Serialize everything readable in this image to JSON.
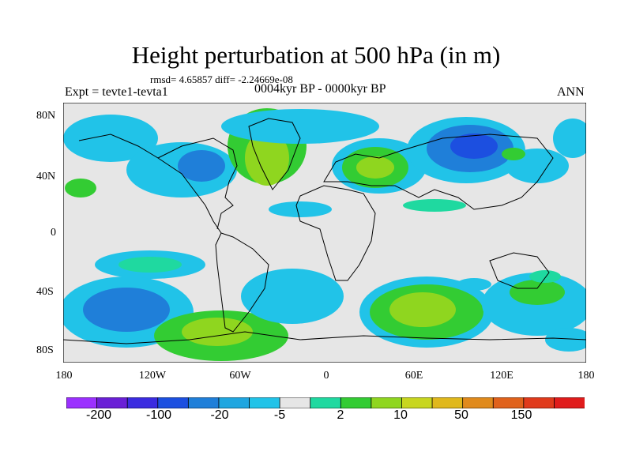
{
  "title": "Height perturbation at 500 hPa (in m)",
  "stats": "rmsd= 4.65857 diff= -2.24669e-08",
  "expt": "Expt = tevte1-tevta1",
  "period": "0004kyr BP - 0000kyr BP",
  "season": "ANN",
  "map": {
    "lat_labels": [
      "80N",
      "40N",
      "0",
      "40S",
      "80S"
    ],
    "lon_labels": [
      "180",
      "120W",
      "60W",
      "0",
      "60E",
      "120E",
      "180"
    ],
    "background_color": "#e6e6e6"
  },
  "colorbar": {
    "colors": [
      "#9b30ff",
      "#6a1fd6",
      "#3b2be0",
      "#1c4fe0",
      "#1f7fd9",
      "#1fa6e0",
      "#21c3e8",
      "#e6e6e6",
      "#1fd9a0",
      "#33cc33",
      "#8fd61f",
      "#c8d61f",
      "#e0b81c",
      "#e08a1c",
      "#e0621c",
      "#e03a1c",
      "#e01c1c"
    ],
    "labels": [
      "-200",
      "-100",
      "-20",
      "-5",
      "2",
      "10",
      "50",
      "150"
    ]
  }
}
